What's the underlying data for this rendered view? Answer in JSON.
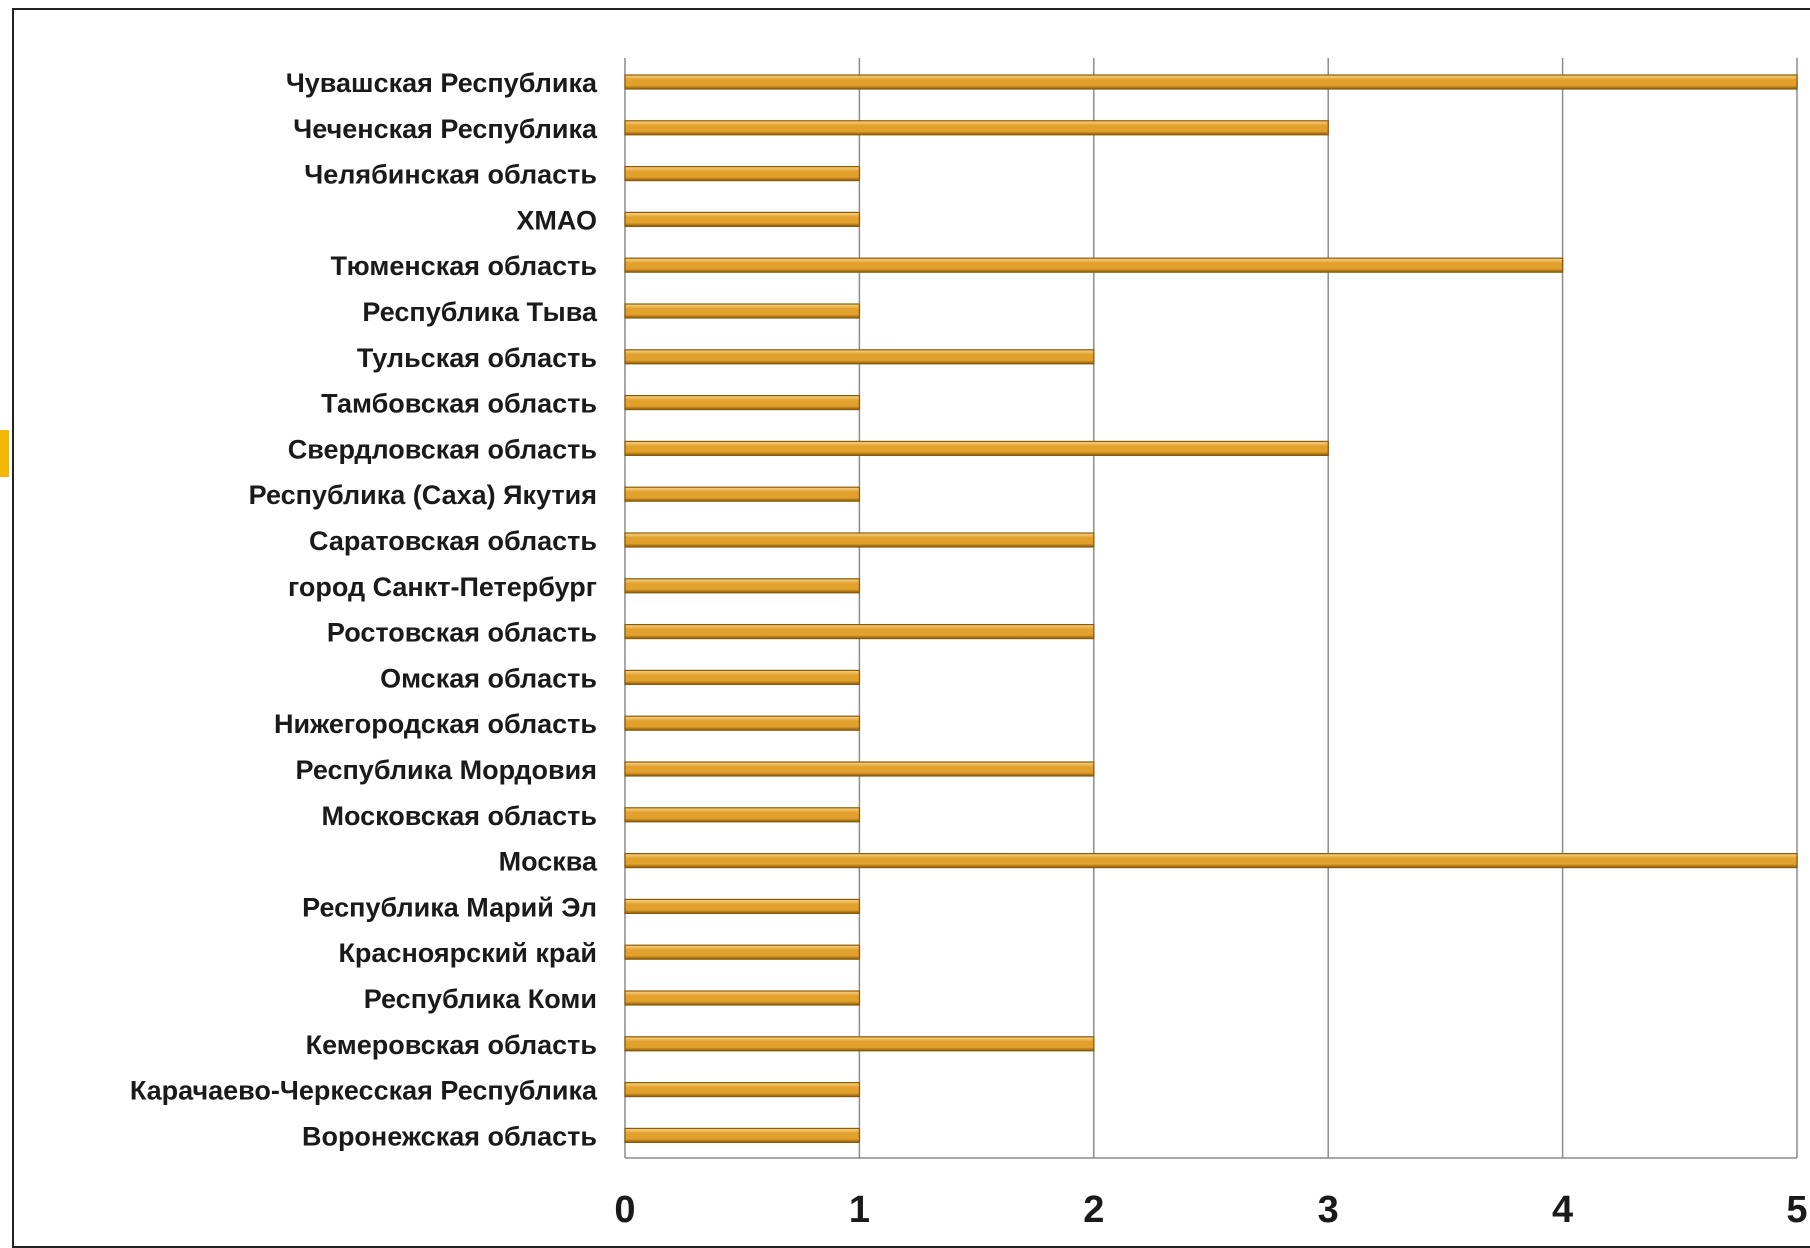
{
  "colors": {
    "bar_fill": "#e2a02c",
    "bar_highlight": "#f8d58a",
    "bar_shadow": "#8a5a0a",
    "grid": "#8c8c8c",
    "accent": "#f2b705"
  },
  "chart_data": {
    "type": "bar",
    "orientation": "horizontal",
    "categories": [
      "Чувашская Республика",
      "Чеченская Республика",
      "Челябинская область",
      "ХМАО",
      "Тюменская область",
      "Республика Тыва",
      "Тульская область",
      "Тамбовская область",
      "Свердловская область",
      "Республика (Саха) Якутия",
      "Саратовская область",
      "город Санкт-Петербург",
      "Ростовская область",
      "Омская область",
      "Нижегородская область",
      "Республика Мордовия",
      "Московская область",
      "Москва",
      "Республика Марий Эл",
      "Красноярский край",
      "Республика Коми",
      "Кемеровская область",
      "Карачаево-Черкесская Республика",
      "Воронежская область"
    ],
    "values": [
      5,
      3,
      1,
      1,
      4,
      1,
      2,
      1,
      3,
      1,
      2,
      1,
      2,
      1,
      1,
      2,
      1,
      5,
      1,
      1,
      1,
      2,
      1,
      1
    ],
    "xlim": [
      0,
      5
    ],
    "xticks": [
      "0",
      "1",
      "2",
      "3",
      "4",
      "5"
    ],
    "grid": true,
    "legend": "none"
  }
}
